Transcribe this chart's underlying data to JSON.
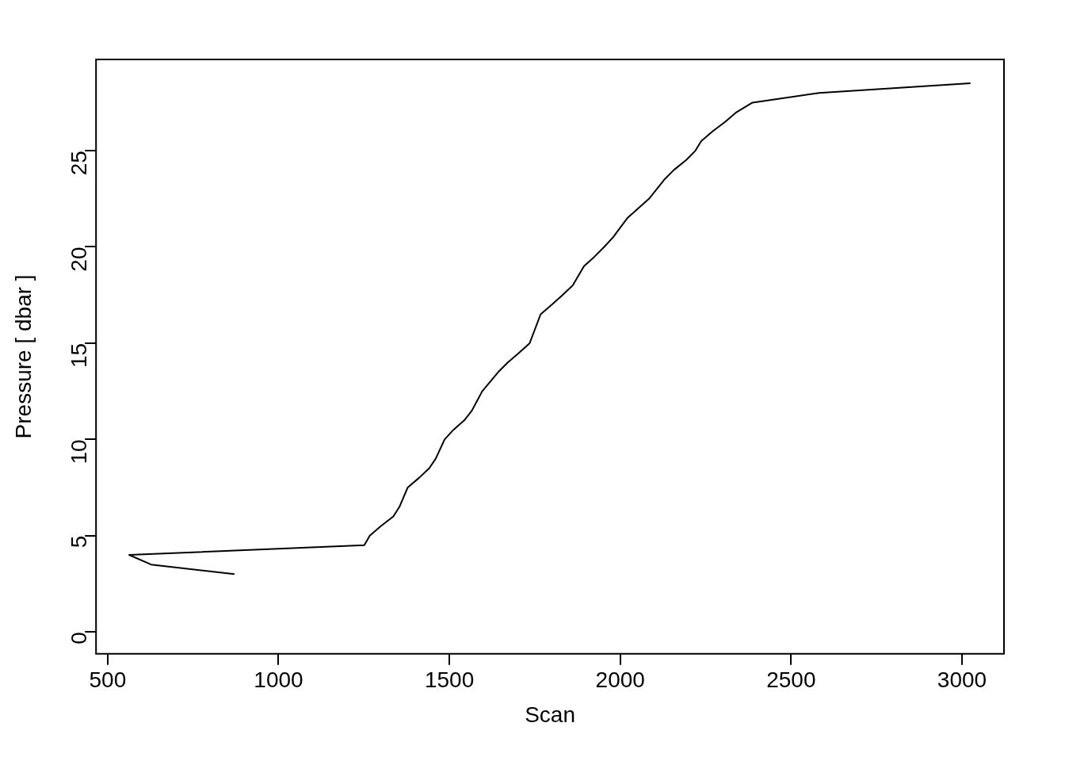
{
  "chart_data": {
    "type": "line",
    "xlabel": "Scan",
    "ylabel": "Pressure [ dbar ]",
    "x": [
      871,
      627,
      563,
      1251,
      1267,
      1300,
      1336,
      1354,
      1378,
      1411,
      1441,
      1460,
      1486,
      1512,
      1544,
      1566,
      1596,
      1643,
      1671,
      1704,
      1735,
      1767,
      1800,
      1831,
      1861,
      1894,
      1925,
      1953,
      1979,
      2000,
      2021,
      2084,
      2129,
      2157,
      2192,
      2220,
      2237,
      2270,
      2307,
      2340,
      2387,
      2582,
      3025
    ],
    "series": [
      {
        "color": "#000000",
        "values": [
          3,
          3.5,
          4,
          4.5,
          5,
          5.5,
          6,
          6.5,
          7.5,
          8,
          8.5,
          9,
          10,
          10.5,
          11,
          11.5,
          12.5,
          13.5,
          14,
          14.5,
          15,
          16.5,
          17,
          17.5,
          18,
          19,
          19.5,
          20,
          20.5,
          21,
          21.5,
          22.5,
          23.5,
          24,
          24.5,
          25,
          25.5,
          26,
          26.5,
          27,
          27.5,
          28,
          28.5
        ]
      }
    ],
    "xlim": [
      466,
      3123
    ],
    "ylim": [
      -1.14,
      29.74
    ],
    "xticks": [
      500,
      1000,
      1500,
      2000,
      2500,
      3000
    ],
    "yticks": [
      0,
      5,
      10,
      15,
      20,
      25
    ],
    "grid": false,
    "legend": false,
    "marker": "none",
    "line_style": "solid"
  }
}
